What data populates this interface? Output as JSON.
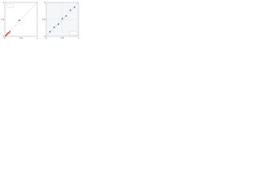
{
  "chart_data": [
    {
      "type": "scatter",
      "x": [
        0.03,
        0.06,
        0.08,
        0.12,
        0.15,
        0.45
      ],
      "values": [
        0.02,
        0.05,
        0.09,
        0.1,
        0.14,
        0.47
      ],
      "color": "#d62728",
      "xlim": [
        0,
        1
      ],
      "ylim": [
        0,
        1
      ],
      "xticks": [
        0,
        0.5,
        1
      ],
      "yticks": [
        0,
        0.5,
        1
      ],
      "grid": false
    },
    {
      "type": "scatter",
      "x": [
        0.12,
        0.25,
        0.38,
        0.5,
        0.62,
        0.75,
        0.88
      ],
      "values": [
        0.14,
        0.27,
        0.36,
        0.52,
        0.6,
        0.77,
        0.86
      ],
      "color": "#1f77b4",
      "xlim": [
        0,
        1
      ],
      "ylim": [
        0,
        1
      ],
      "xticks": [
        0,
        0.5,
        1
      ],
      "yticks": [
        0,
        0.5,
        1
      ],
      "grid": true
    }
  ]
}
